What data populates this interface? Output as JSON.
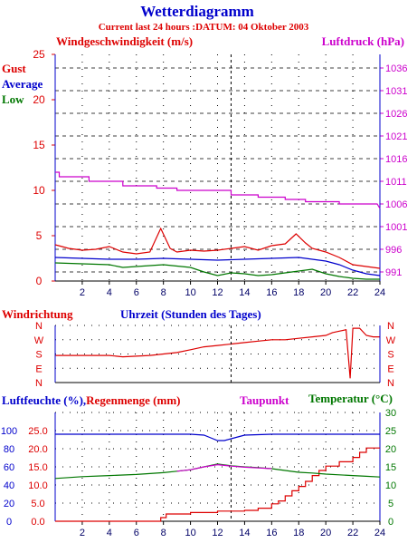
{
  "header": {
    "title": "Wetterdiagramm",
    "subtitle": "Current last 24 hours :DATUM: 04 Oktober 2003"
  },
  "colors": {
    "red": "#dd0000",
    "blue": "#0000cc",
    "green": "#007700",
    "magenta": "#cc00cc",
    "grid": "#000000"
  },
  "chart_data": [
    {
      "type": "line",
      "id": "wind-pressure",
      "title": "Windgeschwindigkeit (m/s)",
      "y2label": "Luftdruck (hPa)",
      "xlabel": "Uhrzeit (Stunden des Tages)",
      "xlim": [
        0,
        24
      ],
      "xticks": [
        2,
        4,
        6,
        8,
        10,
        12,
        14,
        16,
        18,
        20,
        22,
        24
      ],
      "ylim": [
        0,
        25
      ],
      "yticks": [
        0,
        5,
        10,
        15,
        20,
        25
      ],
      "y2lim": [
        989,
        1039
      ],
      "y2ticks": [
        991,
        996,
        1001,
        1006,
        1011,
        1016,
        1021,
        1026,
        1031,
        1036
      ],
      "legend": [
        "Gust",
        "Average",
        "Low"
      ],
      "series": [
        {
          "name": "Gust",
          "axis": "left",
          "color": "#dd0000",
          "x": [
            0,
            1,
            2,
            3,
            4,
            5,
            6,
            7,
            7.8,
            8.5,
            9,
            10,
            11,
            12,
            13,
            14,
            15,
            16,
            17,
            17.8,
            18.5,
            19,
            20,
            21,
            22,
            23,
            24
          ],
          "y": [
            4.0,
            3.6,
            3.4,
            3.5,
            3.8,
            3.2,
            3.0,
            3.2,
            5.8,
            3.6,
            3.2,
            3.4,
            3.3,
            3.4,
            3.6,
            3.8,
            3.4,
            3.9,
            4.1,
            5.2,
            4.2,
            3.6,
            3.2,
            2.6,
            1.8,
            1.6,
            1.4
          ]
        },
        {
          "name": "Average",
          "axis": "left",
          "color": "#0000cc",
          "x": [
            0,
            2,
            4,
            6,
            8,
            10,
            12,
            14,
            16,
            18,
            20,
            21,
            22,
            23,
            24
          ],
          "y": [
            2.6,
            2.5,
            2.4,
            2.4,
            2.5,
            2.4,
            2.3,
            2.4,
            2.5,
            2.6,
            2.2,
            1.8,
            1.2,
            0.8,
            0.6
          ]
        },
        {
          "name": "Low",
          "axis": "left",
          "color": "#007700",
          "x": [
            0,
            2,
            4,
            5,
            6,
            8,
            10,
            11,
            12,
            13,
            14,
            15,
            16,
            17,
            18,
            19,
            20,
            21,
            22,
            23,
            24
          ],
          "y": [
            2.0,
            1.9,
            1.8,
            1.5,
            1.6,
            1.8,
            1.5,
            1.0,
            0.6,
            0.9,
            0.8,
            0.6,
            0.7,
            0.9,
            1.1,
            1.3,
            0.8,
            0.5,
            0.3,
            0.2,
            0.2
          ]
        },
        {
          "name": "Luftdruck",
          "axis": "right",
          "color": "#cc00cc",
          "x": [
            0,
            0.3,
            0.3,
            2.5,
            2.5,
            5.0,
            5.0,
            6.0,
            6.0,
            7.5,
            7.5,
            9.0,
            9.0,
            11.0,
            11.0,
            13.0,
            13.0,
            15.0,
            15.0,
            17.0,
            17.0,
            18.5,
            18.5,
            21.0,
            21.0,
            23.8,
            24.0
          ],
          "y": [
            1013,
            1013,
            1012,
            1012,
            1011,
            1011,
            1010,
            1010,
            1010,
            1010,
            1009.5,
            1009.5,
            1009,
            1009,
            1009,
            1009,
            1008,
            1008,
            1007.5,
            1007.5,
            1007,
            1007,
            1006.5,
            1006.5,
            1006,
            1006,
            1005
          ]
        }
      ]
    },
    {
      "type": "line",
      "id": "wind-direction",
      "title": "Windrichtung",
      "xlim": [
        0,
        24
      ],
      "ycategories": [
        "E",
        "S",
        "W",
        "N"
      ],
      "ylim": [
        0,
        4
      ],
      "yticks": [
        0,
        1,
        2,
        3,
        4
      ],
      "yticklabels": [
        "N",
        "E",
        "S",
        "W",
        "N"
      ],
      "series": [
        {
          "name": "Windrichtung",
          "color": "#dd0000",
          "x": [
            0,
            4,
            5,
            7,
            8,
            9,
            10,
            11,
            12,
            13,
            14,
            15,
            16,
            17,
            18,
            19,
            20,
            20.5,
            21,
            21.5,
            21.8,
            22,
            22.2,
            22.5,
            23,
            23.5,
            24
          ],
          "y": [
            1.9,
            1.9,
            1.8,
            1.9,
            2.0,
            2.1,
            2.3,
            2.5,
            2.6,
            2.7,
            2.8,
            2.9,
            3.0,
            3.0,
            3.1,
            3.2,
            3.3,
            3.5,
            3.6,
            3.7,
            0.3,
            3.8,
            3.8,
            3.8,
            3.3,
            3.2,
            3.2
          ]
        }
      ]
    },
    {
      "type": "line",
      "id": "humidity-rain-temp",
      "title": "Luftfeuchte (%), Regenmenge (mm)",
      "y2label": "Temperatur (°C)",
      "extra_label": "Taupunkt",
      "xlim": [
        0,
        24
      ],
      "xticks": [
        2,
        4,
        6,
        8,
        10,
        12,
        14,
        16,
        18,
        20,
        22,
        24
      ],
      "y_humidity_ticks": [
        0,
        20,
        40,
        60,
        80,
        100
      ],
      "y_rain_ticks": [
        "0.0",
        "5.0",
        "10.0",
        "15.0",
        "20.0",
        "25.0"
      ],
      "y2lim": [
        0,
        30
      ],
      "y2ticks": [
        0,
        5,
        10,
        15,
        20,
        25,
        30
      ],
      "series": [
        {
          "name": "Luftfeuchte",
          "axis": "humidity",
          "color": "#0000cc",
          "x": [
            0,
            4,
            8,
            10,
            11,
            11.5,
            12,
            12.5,
            13,
            13.5,
            14,
            16,
            18,
            20,
            22,
            24
          ],
          "y": [
            96,
            96,
            96,
            96,
            95,
            92,
            89,
            89,
            91,
            93,
            95,
            96,
            96,
            96,
            96,
            96
          ]
        },
        {
          "name": "Regenmenge",
          "axis": "rain",
          "color": "#dd0000",
          "x": [
            0,
            7.8,
            7.8,
            8.2,
            8.2,
            10,
            10,
            12,
            12,
            14,
            14,
            15,
            15,
            16,
            16,
            16.5,
            16.5,
            17,
            17,
            17.5,
            17.5,
            18,
            18,
            18.5,
            18.5,
            19,
            19,
            19.5,
            19.5,
            20,
            20,
            21,
            21,
            22,
            22,
            22.5,
            22.5,
            23,
            23,
            24
          ],
          "y": [
            0,
            0,
            1,
            1,
            2,
            2,
            2.4,
            2.4,
            2.8,
            2.8,
            3,
            3,
            3.6,
            3.6,
            4.8,
            4.8,
            5.6,
            5.6,
            7,
            7,
            8.4,
            8.4,
            9.6,
            9.6,
            11,
            11,
            12.6,
            12.6,
            14,
            14,
            15.2,
            15.2,
            16.4,
            16.4,
            17.6,
            17.6,
            19,
            19,
            20.2,
            20.2
          ]
        },
        {
          "name": "Temperatur",
          "axis": "temp",
          "color": "#007700",
          "x": [
            0,
            2,
            4,
            6,
            8,
            9,
            10,
            11,
            12,
            13,
            14,
            15,
            16,
            17,
            18,
            19,
            20,
            21,
            22,
            23,
            24
          ],
          "y": [
            11.8,
            12.3,
            12.6,
            12.9,
            13.4,
            13.8,
            14.2,
            15,
            15.8,
            15.3,
            15,
            14.8,
            14.5,
            14,
            13.5,
            13.3,
            13,
            12.8,
            12.6,
            12.4,
            12.2
          ]
        },
        {
          "name": "Taupunkt",
          "axis": "temp",
          "color": "#cc00cc",
          "x": [
            9,
            10,
            11,
            12,
            13,
            14,
            15,
            16
          ],
          "y": [
            13.8,
            14.2,
            15,
            15.6,
            15.2,
            14.9,
            14.7,
            14.5
          ]
        }
      ]
    }
  ]
}
